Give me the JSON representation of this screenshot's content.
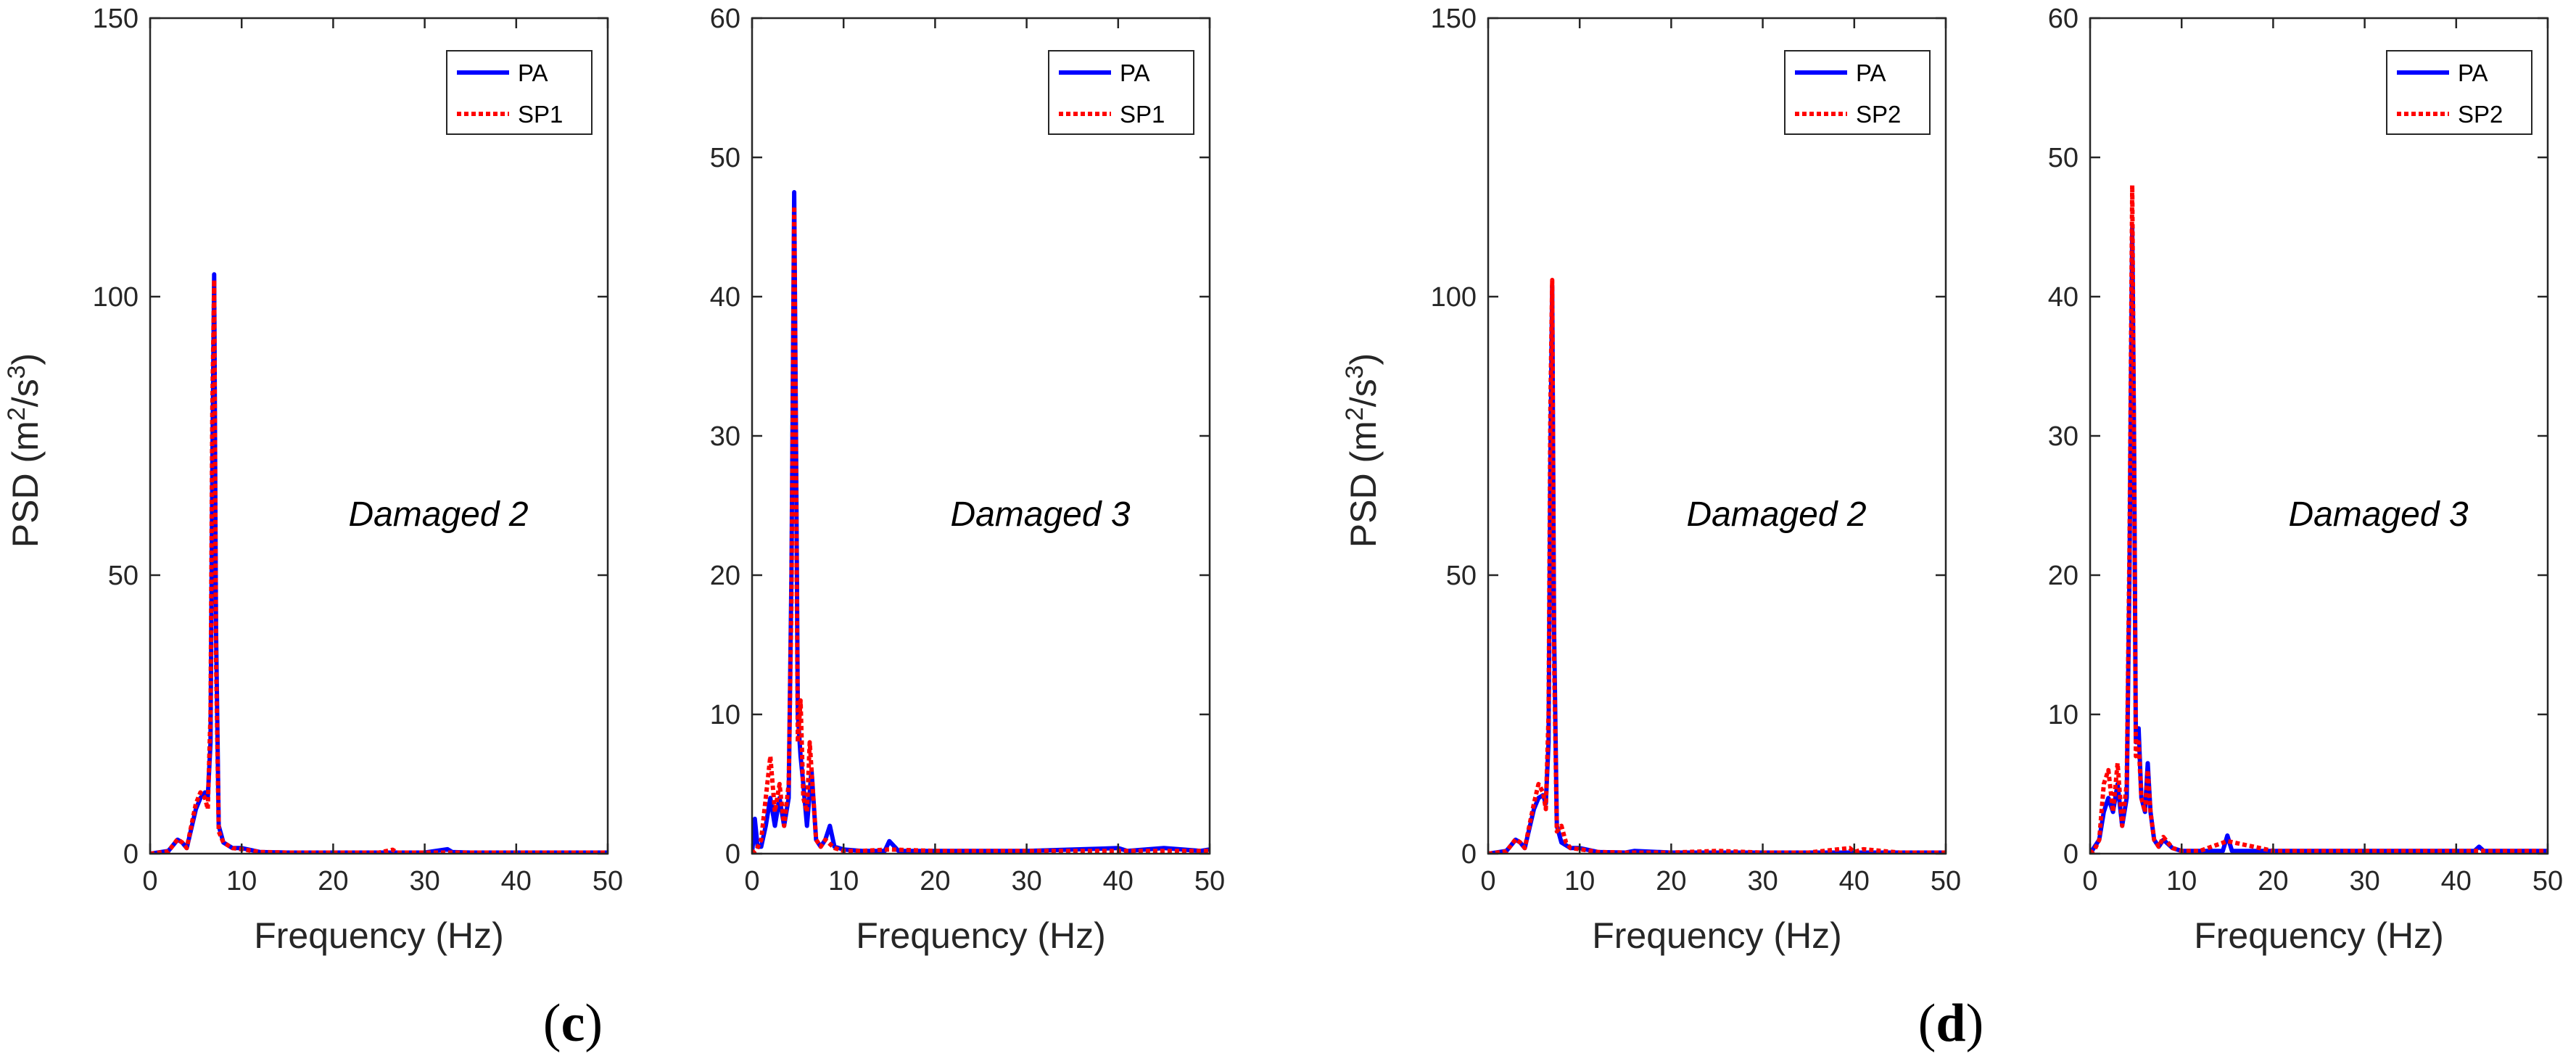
{
  "figure": {
    "panel_labels": [
      {
        "text": "(",
        "bold": "c",
        "close": ")"
      },
      {
        "text": "(",
        "bold": "d",
        "close": ")"
      }
    ]
  },
  "colors": {
    "PA": "#0000ff",
    "SP": "#ff0000",
    "axis": "#262626"
  },
  "chart_data": [
    {
      "type": "line",
      "title": "",
      "xlabel": "Frequency (Hz)",
      "ylabel": "PSD (m2/s3)",
      "ylabel_parts": [
        "PSD (m",
        "2",
        "/s",
        "3",
        ")"
      ],
      "xlim": [
        0,
        50
      ],
      "ylim": [
        0,
        150
      ],
      "xticks": [
        0,
        10,
        20,
        30,
        40,
        50
      ],
      "yticks": [
        0,
        50,
        100,
        150
      ],
      "grid": false,
      "legend": {
        "placement": "top-right",
        "entries": [
          "PA",
          "SP1"
        ]
      },
      "annotation": "Damaged 2",
      "series": [
        {
          "name": "PA",
          "style": "solid",
          "x": [
            0,
            2,
            3,
            3.5,
            4,
            5,
            5.5,
            6,
            6.3,
            6.6,
            6.8,
            7.0,
            7.2,
            7.5,
            8,
            9,
            10,
            12,
            15,
            20,
            25,
            30,
            32.5,
            33,
            35,
            40,
            45,
            50
          ],
          "y": [
            0,
            0.5,
            2.5,
            2,
            1,
            8,
            10,
            11,
            10,
            20,
            70,
            104,
            40,
            5,
            2,
            1,
            1,
            0.3,
            0.2,
            0.2,
            0.2,
            0.2,
            0.8,
            0.3,
            0.2,
            0.2,
            0.2,
            0.2
          ]
        },
        {
          "name": "SP1",
          "style": "dotted",
          "x": [
            0,
            2,
            3,
            3.5,
            4,
            5,
            5.5,
            6,
            6.3,
            6.6,
            6.8,
            7.0,
            7.2,
            7.5,
            8,
            9,
            10,
            12,
            15,
            20,
            25,
            26.5,
            27,
            30,
            35,
            40,
            45,
            50
          ],
          "y": [
            0,
            0.4,
            2.6,
            2,
            1,
            9,
            11,
            10,
            8,
            25,
            80,
            103,
            35,
            4,
            2,
            1,
            0.8,
            0.3,
            0.2,
            0.2,
            0.2,
            0.7,
            0.2,
            0.2,
            0.2,
            0.2,
            0.2,
            0.2
          ]
        }
      ]
    },
    {
      "type": "line",
      "title": "",
      "xlabel": "Frequency (Hz)",
      "ylabel": "",
      "xlim": [
        0,
        50
      ],
      "ylim": [
        0,
        60
      ],
      "xticks": [
        0,
        10,
        20,
        30,
        40,
        50
      ],
      "yticks": [
        0,
        10,
        20,
        30,
        40,
        50,
        60
      ],
      "grid": false,
      "legend": {
        "placement": "top-right",
        "entries": [
          "PA",
          "SP1"
        ]
      },
      "annotation": "Damaged 3",
      "series": [
        {
          "name": "PA",
          "style": "solid",
          "x": [
            0,
            0.3,
            0.6,
            1,
            1.5,
            2,
            2.5,
            3,
            3.5,
            4,
            4.3,
            4.6,
            4.8,
            5.0,
            5.3,
            5.6,
            6,
            6.5,
            7,
            7.5,
            8,
            8.5,
            9,
            10,
            12,
            14.5,
            15,
            16,
            20,
            30,
            40,
            41,
            45,
            49,
            50
          ],
          "y": [
            0,
            2.5,
            0.5,
            0.5,
            2,
            4,
            2,
            4,
            2,
            4,
            20,
            47.5,
            30,
            10,
            7,
            5,
            2,
            6,
            1,
            0.5,
            1,
            2,
            0.5,
            0.3,
            0.2,
            0.2,
            0.9,
            0.2,
            0.2,
            0.2,
            0.4,
            0.2,
            0.4,
            0.2,
            0.3
          ]
        },
        {
          "name": "SP1",
          "style": "dotted",
          "x": [
            0,
            0.5,
            1,
            1.5,
            2,
            2.5,
            3,
            3.5,
            4,
            4.3,
            4.6,
            4.8,
            5.0,
            5.3,
            5.6,
            6,
            6.3,
            6.6,
            7,
            7.5,
            8,
            9,
            10,
            12,
            15,
            20,
            30,
            40,
            50
          ],
          "y": [
            0,
            0.3,
            1,
            4,
            7,
            3,
            5,
            2,
            5,
            18,
            46.5,
            28,
            8,
            11,
            4,
            3,
            8,
            5,
            1,
            0.5,
            1,
            0.4,
            0.2,
            0.2,
            0.3,
            0.2,
            0.2,
            0.2,
            0.2
          ]
        }
      ]
    },
    {
      "type": "line",
      "title": "",
      "xlabel": "Frequency (Hz)",
      "ylabel": "PSD (m2/s3)",
      "ylabel_parts": [
        "PSD (m",
        "2",
        "/s",
        "3",
        ")"
      ],
      "xlim": [
        0,
        50
      ],
      "ylim": [
        0,
        150
      ],
      "xticks": [
        0,
        10,
        20,
        30,
        40,
        50
      ],
      "yticks": [
        0,
        50,
        100,
        150
      ],
      "grid": false,
      "legend": {
        "placement": "top-right",
        "entries": [
          "PA",
          "SP2"
        ]
      },
      "annotation": "Damaged 2",
      "series": [
        {
          "name": "PA",
          "style": "solid",
          "x": [
            0,
            2,
            3,
            3.5,
            4,
            5,
            5.5,
            6,
            6.3,
            6.6,
            6.8,
            7.0,
            7.2,
            7.5,
            8,
            9,
            10,
            12,
            15,
            16,
            20,
            25,
            30,
            35,
            40,
            45,
            50
          ],
          "y": [
            0,
            0.5,
            2.5,
            2,
            1,
            8,
            10,
            10.5,
            9,
            20,
            70,
            102,
            40,
            5,
            2,
            1,
            1,
            0.3,
            0.2,
            0.5,
            0.2,
            0.2,
            0.2,
            0.2,
            0.2,
            0.2,
            0.2
          ]
        },
        {
          "name": "SP2",
          "style": "dotted",
          "x": [
            0,
            2,
            3,
            3.5,
            4,
            5,
            5.5,
            6,
            6.3,
            6.6,
            6.8,
            7.0,
            7.2,
            7.5,
            8,
            8.5,
            9,
            10,
            12,
            15,
            20,
            25,
            30,
            35,
            39.5,
            40,
            41,
            45,
            50
          ],
          "y": [
            0,
            0.4,
            2.6,
            2,
            1,
            9,
            12.5,
            11,
            8,
            25,
            80,
            103,
            35,
            4,
            5,
            2,
            1,
            0.8,
            0.3,
            0.2,
            0.2,
            0.5,
            0.2,
            0.2,
            1,
            0.3,
            0.8,
            0.2,
            0.2
          ]
        }
      ]
    },
    {
      "type": "line",
      "title": "",
      "xlabel": "Frequency (Hz)",
      "ylabel": "",
      "xlim": [
        0,
        50
      ],
      "ylim": [
        0,
        60
      ],
      "xticks": [
        0,
        10,
        20,
        30,
        40,
        50
      ],
      "yticks": [
        0,
        10,
        20,
        30,
        40,
        50,
        60
      ],
      "grid": false,
      "legend": {
        "placement": "top-right",
        "entries": [
          "PA",
          "SP2"
        ]
      },
      "annotation": "Damaged 3",
      "series": [
        {
          "name": "PA",
          "style": "solid",
          "x": [
            0,
            0.5,
            1,
            1.5,
            2,
            2.5,
            3,
            3.5,
            4,
            4.3,
            4.6,
            4.8,
            5.0,
            5.3,
            5.6,
            6,
            6.3,
            6.6,
            7,
            7.5,
            8,
            9,
            10,
            12,
            14.5,
            15,
            15.5,
            20,
            30,
            42,
            42.5,
            43,
            50
          ],
          "y": [
            0,
            0.5,
            1,
            3,
            4,
            3,
            5,
            2,
            4,
            20,
            45,
            30,
            8,
            9,
            4,
            3,
            6.5,
            3,
            1,
            0.5,
            1,
            0.4,
            0.2,
            0.2,
            0.2,
            1.3,
            0.2,
            0.2,
            0.2,
            0.2,
            0.5,
            0.2,
            0.2
          ]
        },
        {
          "name": "SP2",
          "style": "dotted",
          "x": [
            0,
            0.5,
            1,
            1.5,
            2,
            2.5,
            3,
            3.5,
            4,
            4.3,
            4.6,
            4.8,
            5.0,
            5.3,
            5.6,
            6,
            6.3,
            6.6,
            7,
            7.5,
            8,
            9,
            10,
            12,
            15,
            20,
            30,
            40,
            50
          ],
          "y": [
            0,
            0.3,
            1,
            5,
            6,
            3,
            6.5,
            2,
            5,
            22,
            48,
            29,
            7,
            8,
            4,
            3,
            6,
            3,
            1,
            0.5,
            1.2,
            0.4,
            0.2,
            0.2,
            0.9,
            0.2,
            0.2,
            0.2,
            0.2
          ]
        }
      ]
    }
  ]
}
